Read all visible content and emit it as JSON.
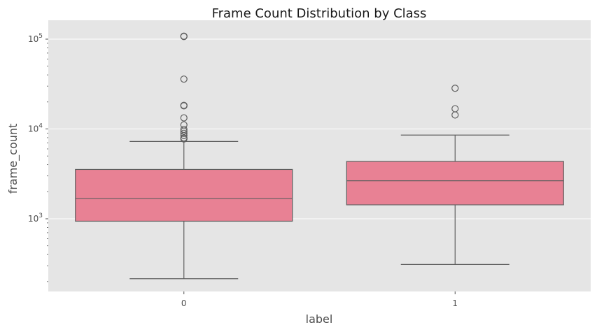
{
  "chart_data": {
    "type": "box",
    "title": "Frame Count Distribution by Class",
    "xlabel": "label",
    "ylabel": "frame_count",
    "yscale": "log",
    "ylim": [
      150,
      140000
    ],
    "grid": true,
    "categories": [
      "0",
      "1"
    ],
    "y_ticks": [
      {
        "value": 1000,
        "base": "10",
        "exp": "3"
      },
      {
        "value": 10000,
        "base": "10",
        "exp": "4"
      },
      {
        "value": 100000,
        "base": "10",
        "exp": "5"
      }
    ],
    "boxes": [
      {
        "label": "0",
        "whisker_low": 215,
        "q1": 940,
        "median": 1680,
        "q3": 3540,
        "whisker_high": 7260,
        "outliers": [
          7750,
          7950,
          8450,
          8950,
          9450,
          9900,
          11100,
          13300,
          18100,
          18300,
          35900,
          107000,
          108000
        ]
      },
      {
        "label": "1",
        "whisker_low": 310,
        "q1": 1430,
        "median": 2650,
        "q3": 4350,
        "whisker_high": 8550,
        "outliers": [
          14300,
          16800,
          28400
        ]
      }
    ],
    "box_color": "#e88194",
    "line_color": "#5e5e5e",
    "background_color": "#e5e5e5",
    "grid_color": "#ffffff"
  }
}
